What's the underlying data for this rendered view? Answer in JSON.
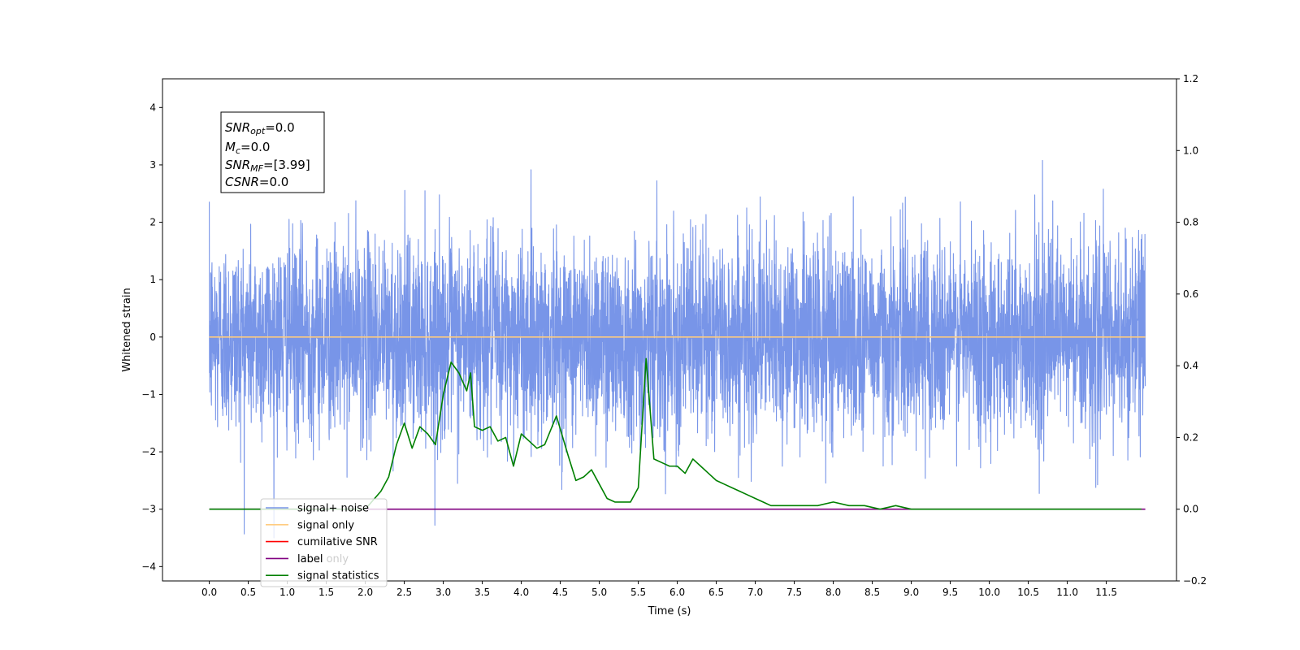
{
  "chart_data": {
    "type": "line",
    "xlabel": "Time (s)",
    "ylabel": "Whitened strain",
    "xlim": [
      -0.6,
      12.4
    ],
    "ylim": [
      -4.25,
      4.5
    ],
    "y2lim": [
      -0.2,
      1.2
    ],
    "x_ticks": [
      "0.0",
      "0.5",
      "1.0",
      "1.5",
      "2.0",
      "2.5",
      "3.0",
      "3.5",
      "4.0",
      "4.5",
      "5.0",
      "5.5",
      "6.0",
      "6.5",
      "7.0",
      "7.5",
      "8.0",
      "8.5",
      "9.0",
      "9.5",
      "10.0",
      "10.5",
      "11.0",
      "11.5"
    ],
    "y_ticks": [
      "−4",
      "−3",
      "−2",
      "−1",
      "0",
      "1",
      "2",
      "3",
      "4"
    ],
    "y2_ticks": [
      "−0.2",
      "0.0",
      "0.2",
      "0.4",
      "0.6",
      "0.8",
      "1.0",
      "1.2"
    ],
    "annotation": {
      "lines": [
        {
          "name": "SNR",
          "sub": "opt",
          "value": "=0.0"
        },
        {
          "name": "M",
          "sub": "c",
          "value": "=0.0"
        },
        {
          "name": "SNR",
          "sub": "MF",
          "value": "=[3.99]"
        },
        {
          "name": "CSNR",
          "sub": "",
          "value": "=0.0"
        }
      ]
    },
    "legend": {
      "placement": "lower-left",
      "entries": [
        {
          "label": "signal+ noise",
          "color": "#7895e8"
        },
        {
          "label": "signal only",
          "color": "#ffcc80"
        },
        {
          "label": "cumilative SNR",
          "color": "#ff0000"
        },
        {
          "label": "label",
          "color": "#800080"
        },
        {
          "label": "signal statistics",
          "color": "#008000"
        }
      ],
      "occluded_text": [
        "label only"
      ]
    },
    "series": [
      {
        "name": "signal+ noise",
        "axis": "left",
        "color": "#7895e8",
        "x_range": [
          0.0,
          12.0
        ],
        "noise_sigma": 0.85,
        "y_range": [
          -3.5,
          4.1
        ]
      },
      {
        "name": "signal only",
        "axis": "left",
        "color": "#ffcc80",
        "x": [
          0.0,
          12.0
        ],
        "y": [
          0.0,
          0.0
        ]
      },
      {
        "name": "label",
        "axis": "right",
        "color": "#800080",
        "x": [
          0.0,
          12.0
        ],
        "y": [
          0.0,
          0.0
        ]
      },
      {
        "name": "signal statistics",
        "axis": "right",
        "color": "#008000",
        "x": [
          0.0,
          1.5,
          1.8,
          2.0,
          2.2,
          2.3,
          2.4,
          2.5,
          2.6,
          2.7,
          2.8,
          2.9,
          3.0,
          3.1,
          3.2,
          3.3,
          3.35,
          3.4,
          3.5,
          3.6,
          3.7,
          3.8,
          3.9,
          4.0,
          4.1,
          4.2,
          4.3,
          4.45,
          4.6,
          4.7,
          4.8,
          4.9,
          5.0,
          5.1,
          5.2,
          5.3,
          5.4,
          5.5,
          5.6,
          5.65,
          5.7,
          5.8,
          5.9,
          6.0,
          6.1,
          6.2,
          6.3,
          6.4,
          6.5,
          6.6,
          6.7,
          6.8,
          6.9,
          7.0,
          7.1,
          7.2,
          7.4,
          7.6,
          7.8,
          8.0,
          8.2,
          8.4,
          8.6,
          8.8,
          9.0,
          9.5,
          10.0,
          11.0,
          11.95
        ],
        "y": [
          0.0,
          0.0,
          0.0,
          0.0,
          0.05,
          0.09,
          0.18,
          0.24,
          0.17,
          0.23,
          0.21,
          0.18,
          0.32,
          0.41,
          0.38,
          0.33,
          0.38,
          0.23,
          0.22,
          0.23,
          0.19,
          0.2,
          0.12,
          0.21,
          0.19,
          0.17,
          0.18,
          0.26,
          0.15,
          0.08,
          0.09,
          0.11,
          0.07,
          0.03,
          0.02,
          0.02,
          0.02,
          0.06,
          0.42,
          0.28,
          0.14,
          0.13,
          0.12,
          0.12,
          0.1,
          0.14,
          0.12,
          0.1,
          0.08,
          0.07,
          0.06,
          0.05,
          0.04,
          0.03,
          0.02,
          0.01,
          0.01,
          0.01,
          0.01,
          0.02,
          0.01,
          0.01,
          0.0,
          0.01,
          0.0,
          0.0,
          0.0,
          0.0,
          0.0
        ]
      }
    ]
  }
}
